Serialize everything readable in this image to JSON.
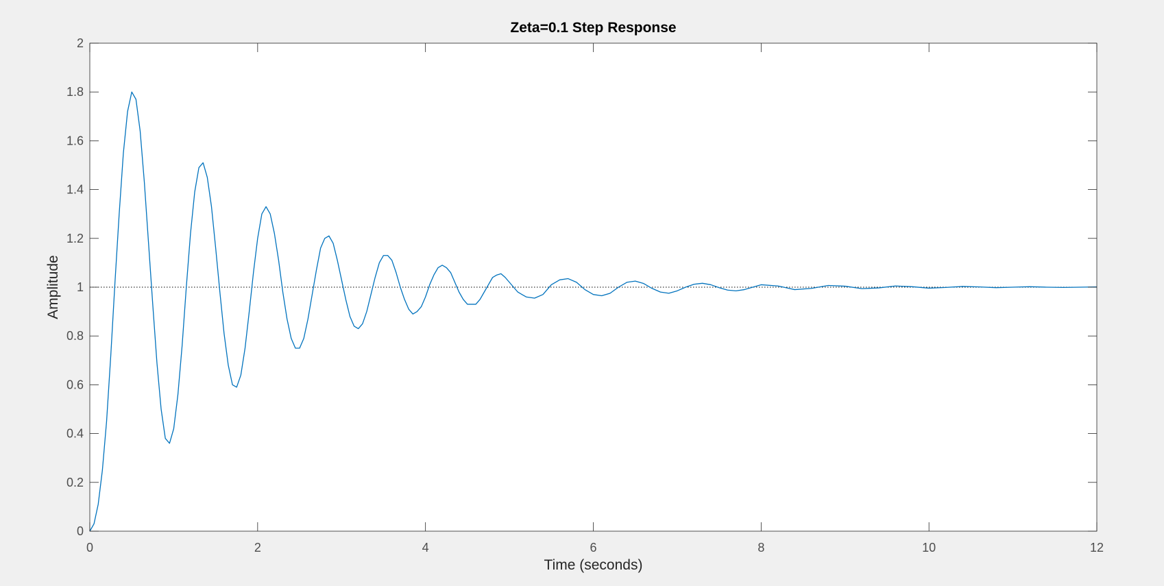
{
  "chart_data": {
    "type": "line",
    "title": "Zeta=0.1 Step Response",
    "xlabel": "Time (seconds)",
    "ylabel": "Amplitude",
    "xlim": [
      0,
      12
    ],
    "ylim": [
      0,
      2
    ],
    "xticks": [
      0,
      2,
      4,
      6,
      8,
      10,
      12
    ],
    "xtick_labels": [
      "0",
      "2",
      "4",
      "6",
      "8",
      "10",
      "12"
    ],
    "yticks": [
      0,
      0.2,
      0.4,
      0.6,
      0.8,
      1,
      1.2,
      1.4,
      1.6,
      1.8,
      2
    ],
    "ytick_labels": [
      "0",
      "0.2",
      "0.4",
      "0.6",
      "0.8",
      "1",
      "1.2",
      "1.4",
      "1.6",
      "1.8",
      "2"
    ],
    "grid": false,
    "legend": "none",
    "reference_line": {
      "y": 1,
      "style": "dotted",
      "color": "#000000"
    },
    "series": [
      {
        "color": "#0072bd",
        "x": [
          0,
          0.05,
          0.1,
          0.15,
          0.2,
          0.25,
          0.3,
          0.35,
          0.4,
          0.45,
          0.5,
          0.55,
          0.6,
          0.65,
          0.7,
          0.75,
          0.8,
          0.85,
          0.9,
          0.95,
          1.0,
          1.05,
          1.1,
          1.15,
          1.2,
          1.25,
          1.3,
          1.35,
          1.4,
          1.45,
          1.5,
          1.55,
          1.6,
          1.65,
          1.7,
          1.75,
          1.8,
          1.85,
          1.9,
          1.95,
          2.0,
          2.05,
          2.1,
          2.15,
          2.2,
          2.25,
          2.3,
          2.35,
          2.4,
          2.45,
          2.5,
          2.55,
          2.6,
          2.65,
          2.7,
          2.75,
          2.8,
          2.85,
          2.9,
          2.95,
          3.0,
          3.05,
          3.1,
          3.15,
          3.2,
          3.25,
          3.3,
          3.35,
          3.4,
          3.45,
          3.5,
          3.55,
          3.6,
          3.65,
          3.7,
          3.75,
          3.8,
          3.85,
          3.9,
          3.95,
          4.0,
          4.05,
          4.1,
          4.15,
          4.2,
          4.25,
          4.3,
          4.35,
          4.4,
          4.45,
          4.5,
          4.55,
          4.6,
          4.65,
          4.7,
          4.75,
          4.8,
          4.85,
          4.9,
          4.95,
          5.0,
          5.1,
          5.2,
          5.3,
          5.4,
          5.5,
          5.6,
          5.7,
          5.8,
          5.9,
          6.0,
          6.1,
          6.2,
          6.3,
          6.4,
          6.5,
          6.6,
          6.7,
          6.8,
          6.9,
          7.0,
          7.1,
          7.2,
          7.3,
          7.4,
          7.5,
          7.6,
          7.7,
          7.8,
          7.9,
          8.0,
          8.2,
          8.4,
          8.6,
          8.8,
          9.0,
          9.2,
          9.4,
          9.6,
          9.8,
          10.0,
          10.2,
          10.4,
          10.6,
          10.8,
          11.0,
          11.2,
          11.4,
          11.6,
          11.8,
          12.0
        ],
        "y": [
          0,
          0.03,
          0.11,
          0.25,
          0.45,
          0.72,
          1.02,
          1.3,
          1.55,
          1.72,
          1.8,
          1.77,
          1.64,
          1.43,
          1.18,
          0.93,
          0.69,
          0.5,
          0.38,
          0.36,
          0.42,
          0.56,
          0.76,
          1.0,
          1.22,
          1.39,
          1.49,
          1.51,
          1.45,
          1.33,
          1.16,
          0.98,
          0.81,
          0.68,
          0.6,
          0.59,
          0.64,
          0.75,
          0.9,
          1.06,
          1.2,
          1.3,
          1.33,
          1.3,
          1.22,
          1.11,
          0.98,
          0.87,
          0.79,
          0.75,
          0.75,
          0.79,
          0.87,
          0.97,
          1.07,
          1.16,
          1.2,
          1.21,
          1.18,
          1.11,
          1.03,
          0.95,
          0.88,
          0.84,
          0.83,
          0.85,
          0.9,
          0.97,
          1.04,
          1.1,
          1.13,
          1.13,
          1.11,
          1.06,
          1.0,
          0.95,
          0.91,
          0.89,
          0.9,
          0.92,
          0.96,
          1.01,
          1.05,
          1.08,
          1.09,
          1.08,
          1.06,
          1.02,
          0.98,
          0.95,
          0.93,
          0.93,
          0.93,
          0.95,
          0.98,
          1.01,
          1.04,
          1.05,
          1.055,
          1.04,
          1.02,
          0.98,
          0.96,
          0.955,
          0.97,
          1.01,
          1.03,
          1.035,
          1.02,
          0.99,
          0.97,
          0.965,
          0.975,
          1.0,
          1.02,
          1.025,
          1.015,
          0.995,
          0.98,
          0.975,
          0.985,
          1.0,
          1.012,
          1.016,
          1.01,
          0.998,
          0.988,
          0.985,
          0.99,
          1.0,
          1.01,
          1.005,
          0.99,
          0.995,
          1.007,
          1.004,
          0.994,
          0.997,
          1.005,
          1.002,
          0.996,
          0.999,
          1.003,
          1.001,
          0.998,
          1.0,
          1.002,
          1.0,
          0.999,
          1.0,
          1.001
        ]
      }
    ]
  }
}
